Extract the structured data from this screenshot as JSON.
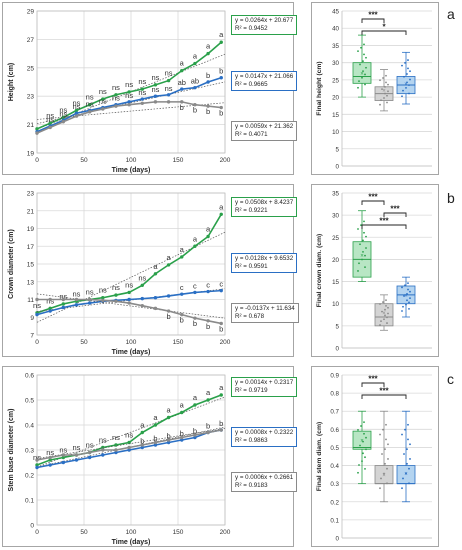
{
  "chart_data": [
    {
      "type": "line",
      "panel": "a",
      "xlabel": "Time (days)",
      "ylabel": "Height (cm)",
      "xlim": [
        0,
        200
      ],
      "ylim": [
        19,
        29
      ],
      "xticks": [
        0,
        50,
        100,
        150,
        200
      ],
      "yticks": [
        19,
        21,
        23,
        25,
        27,
        29
      ],
      "grid": true,
      "series": [
        {
          "color": "#2aa04a",
          "x": [
            0,
            14,
            28,
            42,
            56,
            70,
            84,
            98,
            112,
            126,
            140,
            154,
            168,
            182,
            196
          ],
          "y": [
            20.7,
            21.1,
            21.5,
            22.0,
            22.4,
            22.8,
            23.1,
            23.3,
            23.5,
            23.8,
            24.1,
            24.8,
            25.3,
            26.0,
            26.8
          ],
          "letters": [
            "",
            "ns",
            "ns",
            "ns",
            "ns",
            "ns",
            "ns",
            "ns",
            "ns",
            "ns",
            "ns",
            "a",
            "a",
            "a",
            "a"
          ],
          "equation": "y = 0.0264x + 20.677",
          "r2": "R² = 0.9452"
        },
        {
          "color": "#2a6fc4",
          "x": [
            0,
            14,
            28,
            42,
            56,
            70,
            84,
            98,
            112,
            126,
            140,
            154,
            168,
            182,
            196
          ],
          "y": [
            20.5,
            20.9,
            21.3,
            21.8,
            22.0,
            22.2,
            22.4,
            22.6,
            22.8,
            23.0,
            23.1,
            23.5,
            23.6,
            24.0,
            24.3
          ],
          "letters": [
            "",
            "ns",
            "ns",
            "ns",
            "ns",
            "ns",
            "ns",
            "ns",
            "ns",
            "ns",
            "ns",
            "ab",
            "ab",
            "b",
            "b"
          ],
          "equation": "y = 0.0147x + 21.066",
          "r2": "R² = 0.9665"
        },
        {
          "color": "#8a8a8a",
          "x": [
            0,
            14,
            28,
            42,
            56,
            70,
            84,
            98,
            112,
            126,
            140,
            154,
            168,
            182,
            196
          ],
          "y": [
            20.4,
            20.8,
            21.2,
            21.6,
            21.9,
            22.1,
            22.3,
            22.4,
            22.5,
            22.6,
            22.6,
            22.6,
            22.4,
            22.3,
            22.2
          ],
          "letters": [
            "",
            "",
            "",
            "",
            "",
            "",
            "",
            "",
            "",
            "",
            "",
            "b",
            "b",
            "b",
            "b"
          ],
          "equation": "y = 0.0059x + 21.362",
          "r2": "R² = 0.4071"
        }
      ]
    },
    {
      "type": "line",
      "panel": "b",
      "xlabel": "Time (days)",
      "ylabel": "Crown diameter (cm)",
      "xlim": [
        0,
        200
      ],
      "ylim": [
        7,
        23
      ],
      "xticks": [
        0,
        50,
        100,
        150,
        200
      ],
      "yticks": [
        7,
        9,
        11,
        13,
        15,
        17,
        19,
        21,
        23
      ],
      "grid": true,
      "series": [
        {
          "color": "#2aa04a",
          "x": [
            0,
            14,
            28,
            42,
            56,
            70,
            84,
            98,
            112,
            126,
            140,
            154,
            168,
            182,
            196
          ],
          "y": [
            9.5,
            10.0,
            10.5,
            10.8,
            11.0,
            11.2,
            11.5,
            11.8,
            12.6,
            13.9,
            14.9,
            15.8,
            17.0,
            18.1,
            20.6
          ],
          "letters": [
            "ns",
            "ns",
            "ns",
            "ns",
            "ns",
            "ns",
            "ns",
            "ns",
            "ns",
            "a",
            "a",
            "a",
            "a",
            "a",
            "a"
          ],
          "equation": "y = 0.0508x + 8.4237",
          "r2": "R² = 0.9221"
        },
        {
          "color": "#2a6fc4",
          "x": [
            0,
            14,
            28,
            42,
            56,
            70,
            84,
            98,
            112,
            126,
            140,
            154,
            168,
            182,
            196
          ],
          "y": [
            9.3,
            9.7,
            10.1,
            10.4,
            10.6,
            10.8,
            10.9,
            11.0,
            11.1,
            11.2,
            11.4,
            11.6,
            11.8,
            11.9,
            12.0
          ],
          "letters": [
            "",
            "",
            "",
            "",
            "",
            "",
            "",
            "",
            "",
            "",
            "",
            "c",
            "c",
            "c",
            "c"
          ],
          "equation": "y = 0.0128x + 9.6532",
          "r2": "R² = 0.9591"
        },
        {
          "color": "#8a8a8a",
          "x": [
            0,
            14,
            28,
            42,
            56,
            70,
            84,
            98,
            112,
            126,
            140,
            154,
            168,
            182,
            196
          ],
          "y": [
            11.0,
            11.0,
            11.0,
            11.0,
            11.0,
            10.9,
            10.8,
            10.6,
            10.3,
            10.0,
            9.7,
            9.3,
            8.9,
            8.6,
            8.3
          ],
          "letters": [
            "",
            "",
            "",
            "",
            "",
            "",
            "",
            "",
            "",
            "",
            "b",
            "b",
            "b",
            "b",
            "b"
          ],
          "equation": "y = -0.0137x + 11.634",
          "r2": "R² = 0.678"
        }
      ]
    },
    {
      "type": "line",
      "panel": "c",
      "xlabel": "Time (days)",
      "ylabel": "Stem base diameter (cm)",
      "xlim": [
        0,
        200
      ],
      "ylim": [
        0,
        0.6
      ],
      "xticks": [
        0,
        50,
        100,
        150,
        200
      ],
      "yticks": [
        0,
        0.1,
        0.2,
        0.3,
        0.4,
        0.5,
        0.6
      ],
      "grid": true,
      "series": [
        {
          "color": "#2aa04a",
          "x": [
            0,
            14,
            28,
            42,
            56,
            70,
            84,
            98,
            112,
            126,
            140,
            154,
            168,
            182,
            196
          ],
          "y": [
            0.24,
            0.26,
            0.27,
            0.28,
            0.29,
            0.31,
            0.32,
            0.33,
            0.37,
            0.4,
            0.43,
            0.45,
            0.48,
            0.5,
            0.52
          ],
          "letters": [
            "ns",
            "ns",
            "ns",
            "ns",
            "ns",
            "ns",
            "ns",
            "ns",
            "a",
            "a",
            "a",
            "a",
            "a",
            "a",
            "a"
          ],
          "equation": "y = 0.0014x + 0.2317",
          "r2": "R² = 0.9719"
        },
        {
          "color": "#2a6fc4",
          "x": [
            0,
            14,
            28,
            42,
            56,
            70,
            84,
            98,
            112,
            126,
            140,
            154,
            168,
            182,
            196
          ],
          "y": [
            0.23,
            0.24,
            0.25,
            0.26,
            0.27,
            0.28,
            0.29,
            0.3,
            0.31,
            0.32,
            0.33,
            0.34,
            0.35,
            0.37,
            0.38
          ],
          "letters": [
            "",
            "",
            "",
            "",
            "",
            "",
            "",
            "",
            "b",
            "b",
            "b",
            "b",
            "b",
            "b",
            "b"
          ],
          "equation": "y = 0.0008x + 0.2322",
          "r2": "R² = 0.9863"
        },
        {
          "color": "#8a8a8a",
          "x": [
            0,
            14,
            28,
            42,
            56,
            70,
            84,
            98,
            112,
            126,
            140,
            154,
            168,
            182,
            196
          ],
          "y": [
            0.26,
            0.27,
            0.28,
            0.28,
            0.29,
            0.3,
            0.3,
            0.31,
            0.32,
            0.33,
            0.34,
            0.35,
            0.36,
            0.37,
            0.38
          ],
          "letters": [],
          "equation": "y = 0.0006x + 0.2661",
          "r2": "R² = 0.9183"
        }
      ]
    },
    {
      "type": "box",
      "panel": "a",
      "ylabel": "Final height (cm)",
      "ylim": [
        0,
        45
      ],
      "yticks": [
        0,
        5,
        10,
        15,
        20,
        25,
        30,
        35,
        40,
        45
      ],
      "boxes": [
        {
          "color": "#2aa04a",
          "fill": "#b8e6c4",
          "min": 20,
          "q1": 24,
          "median": 26,
          "q3": 30,
          "max": 38,
          "mean": 27
        },
        {
          "color": "#8a8a8a",
          "fill": "#d4d4d4",
          "min": 16,
          "q1": 19,
          "median": 21,
          "q3": 23,
          "max": 28,
          "mean": 22
        },
        {
          "color": "#2a6fc4",
          "fill": "#b4d4f0",
          "min": 18,
          "q1": 21,
          "median": 23.5,
          "q3": 26,
          "max": 33,
          "mean": 24
        }
      ],
      "brackets": [
        {
          "from": 0,
          "to": 1,
          "label": "***"
        },
        {
          "from": 0,
          "to": 2,
          "label": "*"
        }
      ]
    },
    {
      "type": "box",
      "panel": "b",
      "ylabel": "Final crown diam. (cm)",
      "ylim": [
        0,
        35
      ],
      "yticks": [
        0,
        5,
        10,
        15,
        20,
        25,
        30,
        35
      ],
      "boxes": [
        {
          "color": "#2aa04a",
          "fill": "#b8e6c4",
          "min": 15,
          "q1": 16,
          "median": 20,
          "q3": 24,
          "max": 31,
          "mean": 21
        },
        {
          "color": "#8a8a8a",
          "fill": "#d4d4d4",
          "min": 4,
          "q1": 5,
          "median": 7,
          "q3": 10,
          "max": 12,
          "mean": 8
        },
        {
          "color": "#2a6fc4",
          "fill": "#b4d4f0",
          "min": 7,
          "q1": 10,
          "median": 12,
          "q3": 14,
          "max": 16,
          "mean": 12
        }
      ],
      "brackets": [
        {
          "from": 0,
          "to": 1,
          "label": "***"
        },
        {
          "from": 1,
          "to": 2,
          "label": "***"
        },
        {
          "from": 0,
          "to": 2,
          "label": "***"
        }
      ]
    },
    {
      "type": "box",
      "panel": "c",
      "ylabel": "Final stem diam. (cm)",
      "ylim": [
        0,
        0.9
      ],
      "yticks": [
        0,
        0.1,
        0.2,
        0.3,
        0.4,
        0.5,
        0.6,
        0.7,
        0.8,
        0.9
      ],
      "boxes": [
        {
          "color": "#2aa04a",
          "fill": "#b8e6c4",
          "min": 0.3,
          "q1": 0.49,
          "median": 0.5,
          "q3": 0.59,
          "max": 0.7,
          "mean": 0.54
        },
        {
          "color": "#8a8a8a",
          "fill": "#d4d4d4",
          "min": 0.2,
          "q1": 0.3,
          "median": 0.3,
          "q3": 0.4,
          "max": 0.7,
          "mean": 0.35
        },
        {
          "color": "#2a6fc4",
          "fill": "#b4d4f0",
          "min": 0.2,
          "q1": 0.3,
          "median": 0.3,
          "q3": 0.4,
          "max": 0.7,
          "mean": 0.36
        }
      ],
      "brackets": [
        {
          "from": 0,
          "to": 1,
          "label": "***"
        },
        {
          "from": 0,
          "to": 2,
          "label": "***"
        }
      ]
    }
  ],
  "panel_letters": [
    "a",
    "b",
    "c"
  ]
}
